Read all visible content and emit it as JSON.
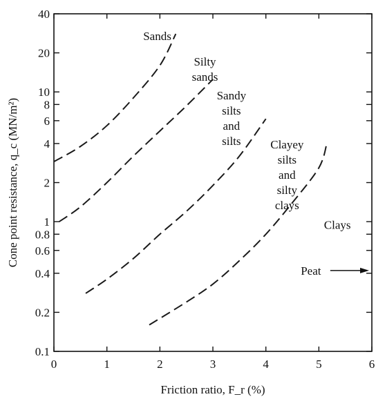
{
  "chart_data": {
    "type": "line",
    "xlabel": "Friction ratio, F_r (%)",
    "ylabel": "Cone point resistance, q_c (MN/m²)",
    "xlim": [
      0,
      6
    ],
    "ylim": [
      0.1,
      40
    ],
    "y_scale": "log",
    "grid": false,
    "x_ticks": [
      0,
      1,
      2,
      3,
      4,
      5,
      6
    ],
    "y_ticks": [
      0.1,
      0.2,
      0.4,
      0.6,
      0.8,
      1,
      2,
      4,
      6,
      8,
      10,
      20,
      40
    ],
    "series": [
      {
        "values": [
          [
            0.0,
            2.9
          ],
          [
            0.5,
            3.8
          ],
          [
            1.0,
            5.5
          ],
          [
            1.5,
            9.0
          ],
          [
            2.0,
            16.0
          ],
          [
            2.3,
            28.0
          ]
        ]
      },
      {
        "values": [
          [
            0.1,
            1.0
          ],
          [
            0.5,
            1.3
          ],
          [
            1.0,
            2.0
          ],
          [
            1.5,
            3.2
          ],
          [
            2.0,
            5.0
          ],
          [
            2.5,
            7.8
          ],
          [
            3.0,
            12.5
          ]
        ]
      },
      {
        "values": [
          [
            0.6,
            0.28
          ],
          [
            1.0,
            0.36
          ],
          [
            1.5,
            0.52
          ],
          [
            2.0,
            0.8
          ],
          [
            2.5,
            1.2
          ],
          [
            3.0,
            1.9
          ],
          [
            3.5,
            3.2
          ],
          [
            4.0,
            6.2
          ]
        ]
      },
      {
        "values": [
          [
            1.8,
            0.16
          ],
          [
            2.5,
            0.24
          ],
          [
            3.0,
            0.33
          ],
          [
            3.5,
            0.5
          ],
          [
            4.0,
            0.8
          ],
          [
            4.5,
            1.4
          ],
          [
            5.0,
            2.6
          ],
          [
            5.15,
            4.0
          ]
        ]
      }
    ],
    "annotations": [
      {
        "lines": [
          "Sands"
        ],
        "x": 1.95,
        "y": 27.0
      },
      {
        "lines": [
          "Silty",
          "sands"
        ],
        "x": 2.85,
        "y": 15.0
      },
      {
        "lines": [
          "Sandy",
          "silts",
          "and",
          "silts"
        ],
        "x": 3.35,
        "y": 6.3
      },
      {
        "lines": [
          "Clayey",
          "silts",
          "and",
          "silty",
          "clays"
        ],
        "x": 4.4,
        "y": 2.3
      },
      {
        "lines": [
          "Clays"
        ],
        "x": 5.35,
        "y": 0.95
      },
      {
        "lines": [
          "Peat"
        ],
        "x": 4.85,
        "y": 0.42,
        "arrow": true
      }
    ]
  }
}
